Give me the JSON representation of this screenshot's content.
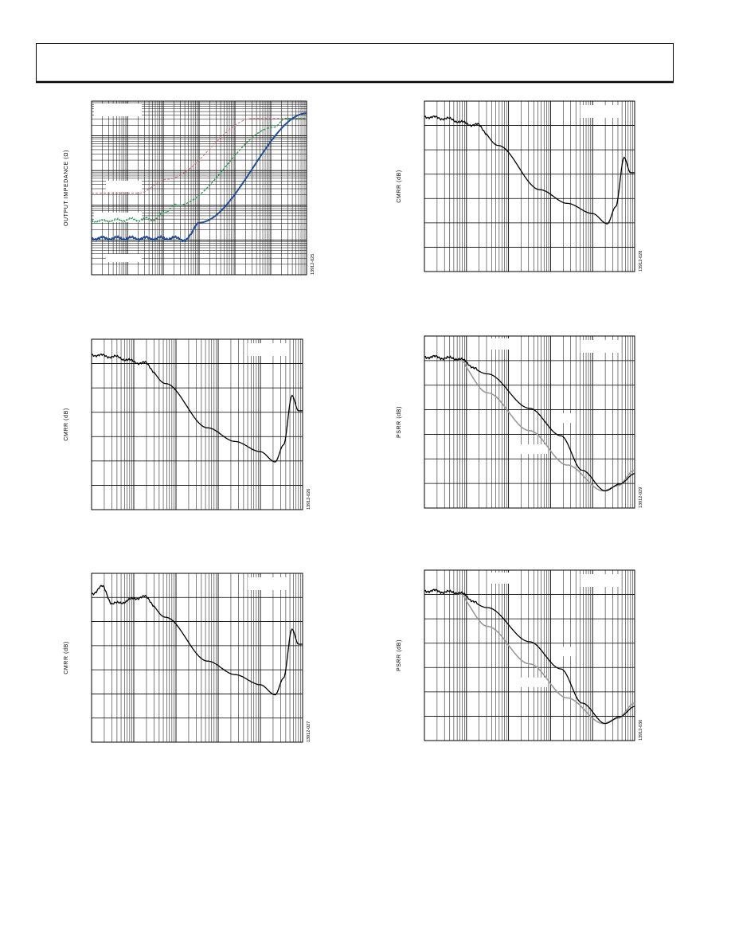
{
  "figures": [
    {
      "y_label": "OUTPUT IMPEDANCE (Ω)",
      "code": "13912-025"
    },
    {
      "y_label": "CMRR (dB)",
      "code": "13912-028"
    },
    {
      "y_label": "CMRR (dB)",
      "code": "13912-026"
    },
    {
      "y_label": "PSRR (dB)",
      "code": "13912-029"
    },
    {
      "y_label": "CMRR (dB)",
      "code": "13912-027"
    },
    {
      "y_label": "PSRR (dB)",
      "code": "13912-030"
    }
  ]
}
